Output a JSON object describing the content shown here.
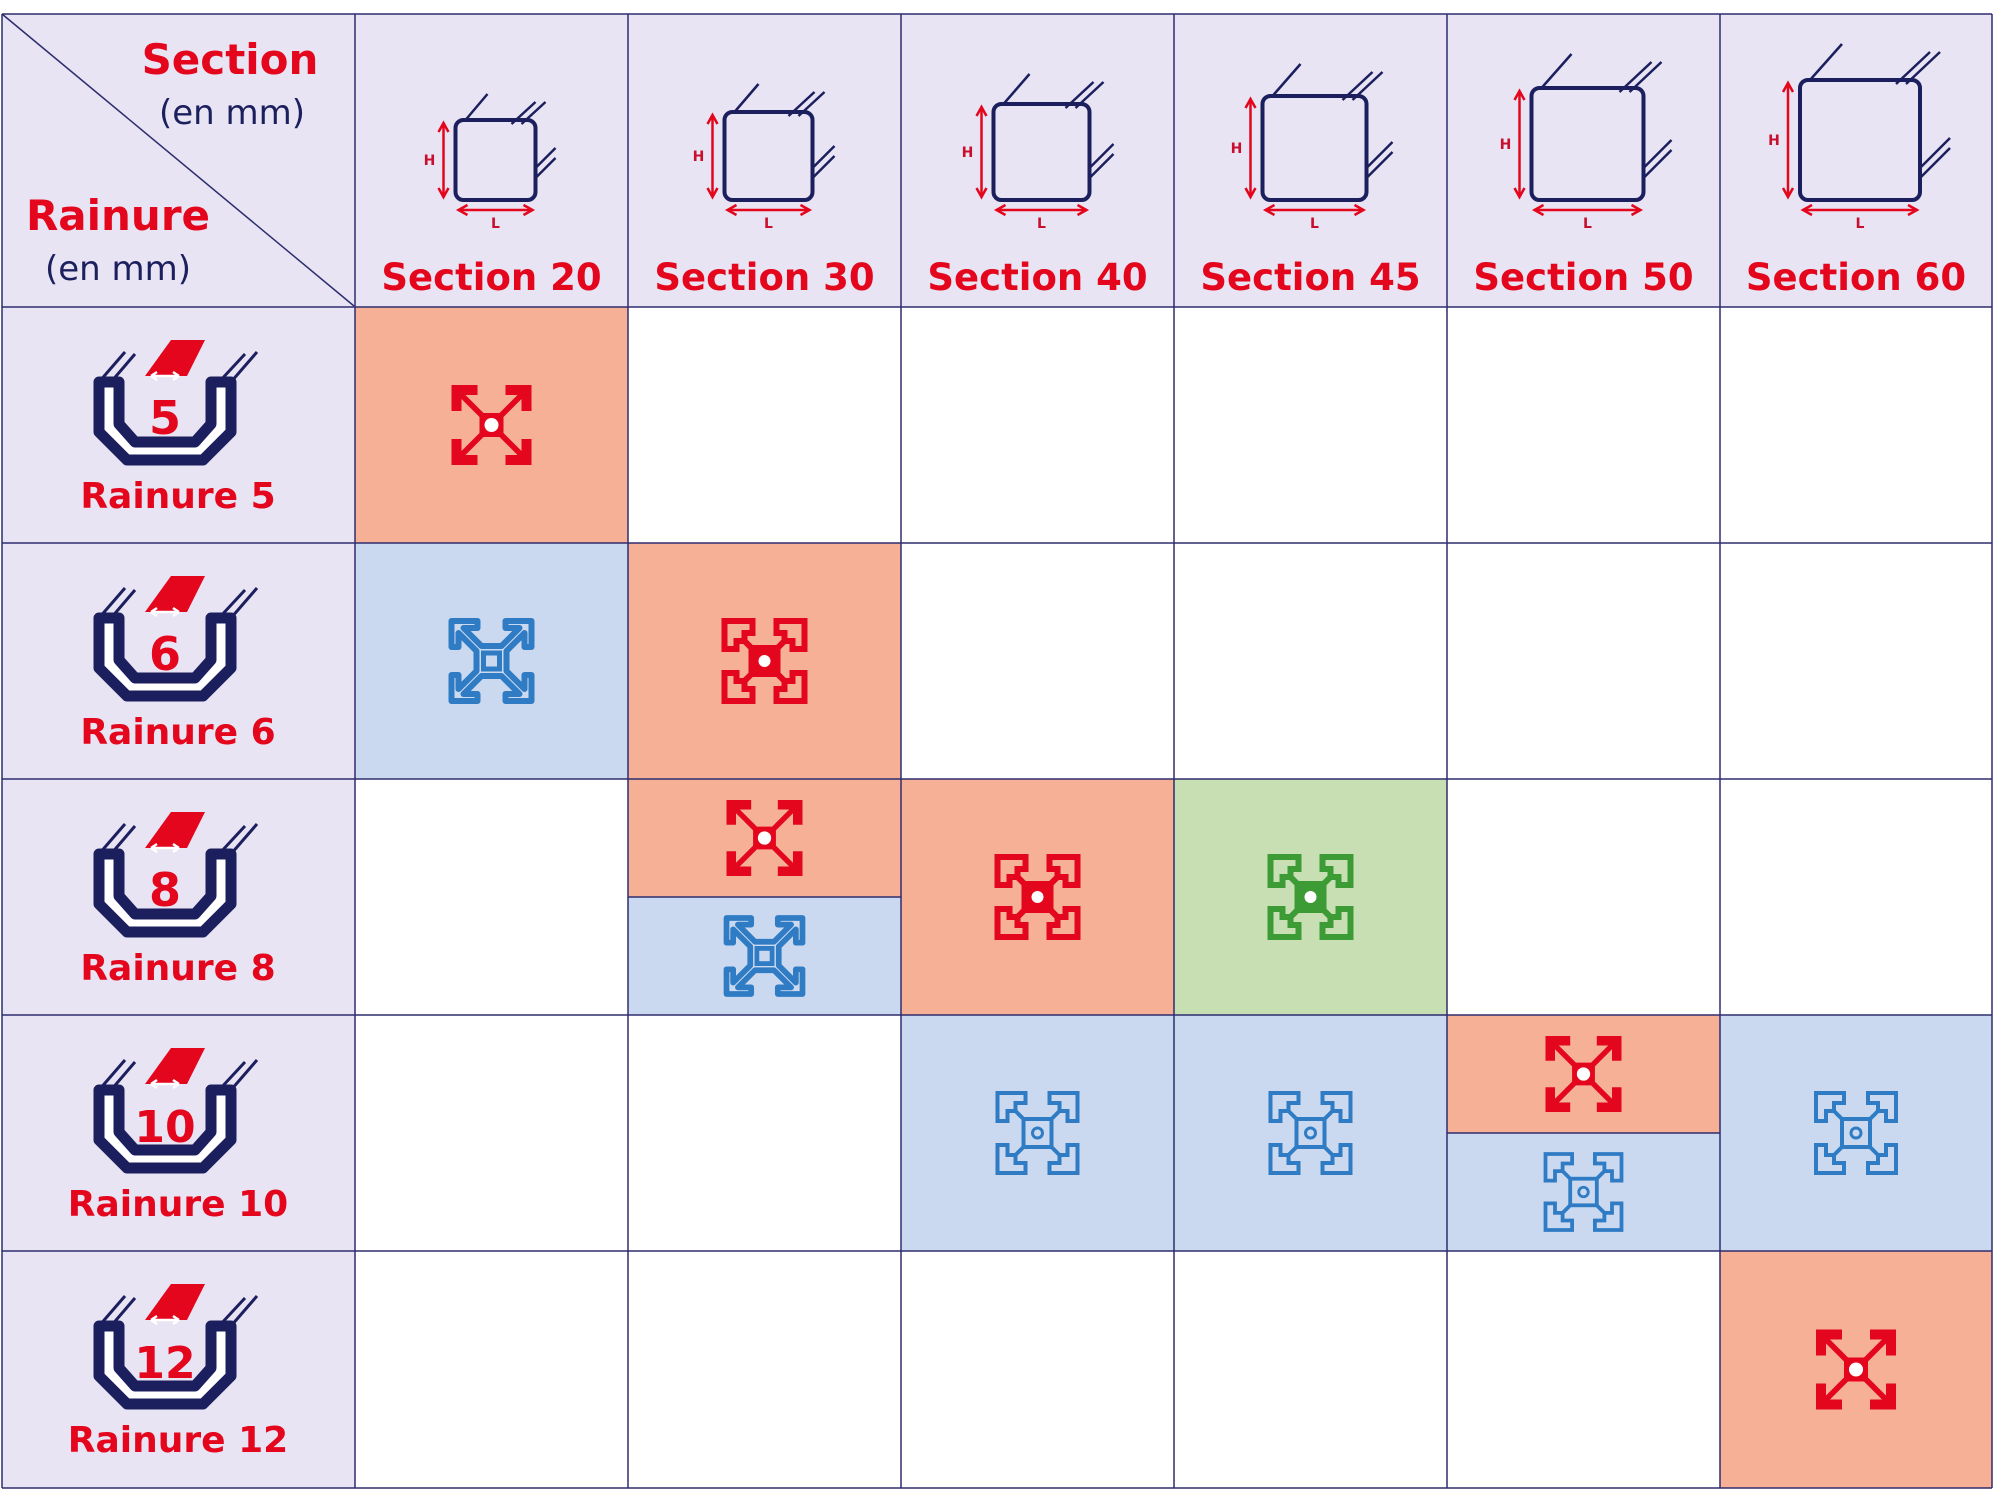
{
  "colors": {
    "grid": "#2e2d6e",
    "header_bg": "#e8e4f3",
    "red_cell": "#f5b096",
    "blue_cell": "#cad9f0",
    "green_cell": "#c8dfb4",
    "red_icon": "#e3061c",
    "blue_icon": "#2f7cc4",
    "green_icon": "#3d9b35",
    "navy": "#1c1f5e"
  },
  "corner": {
    "section_title": "Section",
    "section_unit": "(en mm)",
    "rainure_title": "Rainure",
    "rainure_unit": "(en mm)"
  },
  "dimension_letters": {
    "height": "H",
    "length": "L"
  },
  "columns": [
    {
      "label": "Section 20",
      "icon": "square-section-icon"
    },
    {
      "label": "Section 30",
      "icon": "square-section-icon"
    },
    {
      "label": "Section 40",
      "icon": "square-section-icon"
    },
    {
      "label": "Section 45",
      "icon": "square-section-icon"
    },
    {
      "label": "Section 50",
      "icon": "square-section-icon"
    },
    {
      "label": "Section 60",
      "icon": "square-section-icon"
    }
  ],
  "rows": [
    {
      "number": "5",
      "label": "Rainure 5",
      "icon": "slot-profile-icon"
    },
    {
      "number": "6",
      "label": "Rainure 6",
      "icon": "slot-profile-icon"
    },
    {
      "number": "8",
      "label": "Rainure 8",
      "icon": "slot-profile-icon"
    },
    {
      "number": "10",
      "label": "Rainure 10",
      "icon": "slot-profile-icon"
    },
    {
      "number": "12",
      "label": "Rainure 12",
      "icon": "slot-profile-icon"
    }
  ],
  "cells": [
    {
      "row": 0,
      "col": 0,
      "parts": [
        {
          "color": "red",
          "icon": "profile-x-icon"
        }
      ]
    },
    {
      "row": 1,
      "col": 0,
      "parts": [
        {
          "color": "blue",
          "icon": "profile-x-light-icon"
        }
      ]
    },
    {
      "row": 1,
      "col": 1,
      "parts": [
        {
          "color": "red",
          "icon": "profile-grid-icon"
        }
      ]
    },
    {
      "row": 2,
      "col": 1,
      "parts": [
        {
          "color": "red",
          "icon": "profile-x-icon"
        },
        {
          "color": "blue",
          "icon": "profile-x-light-icon"
        }
      ]
    },
    {
      "row": 2,
      "col": 2,
      "parts": [
        {
          "color": "red",
          "icon": "profile-grid-icon"
        }
      ]
    },
    {
      "row": 2,
      "col": 3,
      "parts": [
        {
          "color": "green",
          "icon": "profile-grid-icon"
        }
      ]
    },
    {
      "row": 3,
      "col": 2,
      "parts": [
        {
          "color": "blue",
          "icon": "profile-grid-light-icon"
        }
      ]
    },
    {
      "row": 3,
      "col": 3,
      "parts": [
        {
          "color": "blue",
          "icon": "profile-grid-light-icon"
        }
      ]
    },
    {
      "row": 3,
      "col": 4,
      "parts": [
        {
          "color": "red",
          "icon": "profile-x-icon"
        },
        {
          "color": "blue",
          "icon": "profile-grid-light-icon"
        }
      ]
    },
    {
      "row": 3,
      "col": 5,
      "parts": [
        {
          "color": "blue",
          "icon": "profile-grid-light-icon"
        }
      ]
    },
    {
      "row": 4,
      "col": 5,
      "parts": [
        {
          "color": "red",
          "icon": "profile-x-icon"
        }
      ]
    }
  ]
}
